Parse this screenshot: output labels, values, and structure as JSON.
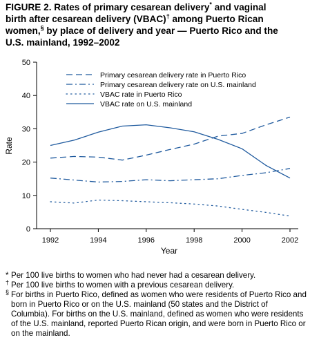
{
  "title": {
    "lines": [
      {
        "text": "FIGURE 2. Rates of primary cesarean delivery",
        "sup": "*",
        "after": " and vaginal"
      },
      {
        "text": "birth after cesarean delivery (VBAC)",
        "sup": "†",
        "after": " among Puerto Rican"
      },
      {
        "text": "women,",
        "sup": "§",
        "after": " by place of delivery and year — Puerto Rico and the"
      },
      {
        "text": "U.S. mainland, 1992–2002",
        "sup": "",
        "after": ""
      }
    ]
  },
  "footnotes": [
    {
      "mark": "*",
      "text": "Per 100 live births to women who had never had a cesarean delivery."
    },
    {
      "mark": "†",
      "text": "Per 100 live births to women with a previous cesarean delivery."
    },
    {
      "mark": "§",
      "text": "For births in Puerto Rico, defined as women who were residents of Puerto Rico and born in Puerto Rico or on the U.S. mainland (50 states and the District of Columbia). For births on the U.S. mainland, defined as women who were residents of the U.S. mainland, reported Puerto Rican origin, and were born in Puerto Rico or on the mainland."
    }
  ],
  "chart_data": {
    "type": "line",
    "xlabel": "Year",
    "ylabel": "Rate",
    "xlim": [
      1992,
      2002
    ],
    "ylim": [
      0,
      50
    ],
    "xticks": [
      1992,
      1994,
      1996,
      1998,
      2000,
      2002
    ],
    "yticks": [
      0,
      10,
      20,
      30,
      40,
      50
    ],
    "grid": false,
    "legend_position": "top-left",
    "x": [
      1992,
      1993,
      1994,
      1995,
      1996,
      1997,
      1998,
      1999,
      2000,
      2001,
      2002
    ],
    "series": [
      {
        "name": "Primary cesarean delivery rate in Puerto Rico",
        "style": "dashed",
        "color": "#1f5a9e",
        "values": [
          21.2,
          21.7,
          21.5,
          20.6,
          22.1,
          23.8,
          25.4,
          27.8,
          28.6,
          31.2,
          33.5
        ]
      },
      {
        "name": "Primary cesarean delivery rate on U.S. mainland",
        "style": "dashdot",
        "color": "#1f5a9e",
        "values": [
          15.2,
          14.6,
          14.0,
          14.2,
          14.7,
          14.4,
          14.7,
          15.0,
          16.0,
          16.8,
          18.1
        ]
      },
      {
        "name": "VBAC rate in Puerto Rico",
        "style": "dotted",
        "color": "#1f5a9e",
        "values": [
          8.1,
          7.7,
          8.6,
          8.4,
          8.1,
          7.8,
          7.4,
          6.8,
          5.8,
          4.9,
          3.8
        ]
      },
      {
        "name": "VBAC rate on U.S. mainland",
        "style": "solid",
        "color": "#1f5a9e",
        "values": [
          25.0,
          26.6,
          29.0,
          30.8,
          31.2,
          30.3,
          29.1,
          26.8,
          24.0,
          19.0,
          15.2
        ]
      }
    ]
  }
}
